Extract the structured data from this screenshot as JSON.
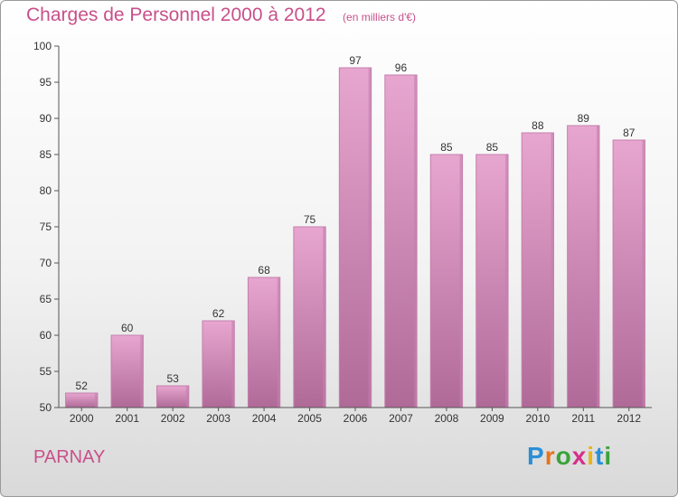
{
  "header": {
    "title": "Charges de Personnel 2000 à 2012",
    "subtitle": "(en milliers d'€)"
  },
  "footer": {
    "place": "PARNAY",
    "logo_letters": [
      "P",
      "r",
      "o",
      "x",
      "i",
      "t",
      "i"
    ],
    "logo_colors": [
      "#2a8fd6",
      "#e8731a",
      "#3aa33a",
      "#d42f8a",
      "#e8b41a",
      "#2a8fd6",
      "#3aa33a"
    ]
  },
  "colors": {
    "bar_top": "#e7a6cf",
    "bar_bottom": "#b06a98",
    "bar_side": "#c57fad",
    "text": "#333333",
    "accent": "#c8508a"
  },
  "chart_data": {
    "type": "bar",
    "title": "Charges de Personnel 2000 à 2012",
    "subtitle": "(en milliers d'€)",
    "categories": [
      "2000",
      "2001",
      "2002",
      "2003",
      "2004",
      "2005",
      "2006",
      "2007",
      "2008",
      "2009",
      "2010",
      "2011",
      "2012"
    ],
    "values": [
      52,
      60,
      53,
      62,
      68,
      75,
      97,
      96,
      85,
      85,
      88,
      89,
      87
    ],
    "ylim": [
      50,
      100
    ],
    "yticks": [
      50,
      55,
      60,
      65,
      70,
      75,
      80,
      85,
      90,
      95,
      100
    ],
    "grid": false,
    "show_data_labels": true
  }
}
